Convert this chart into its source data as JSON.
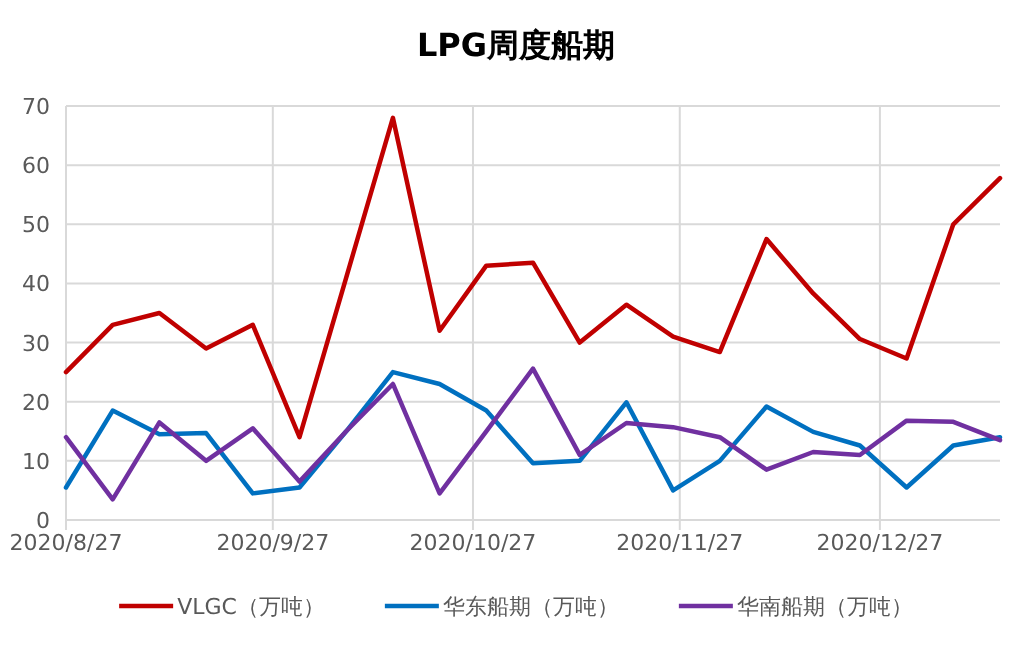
{
  "chart_data": {
    "type": "line",
    "title": "LPG周度船期",
    "x": [
      "2020-08-27",
      "2020-09-03",
      "2020-09-10",
      "2020-09-17",
      "2020-09-24",
      "2020-10-01",
      "2020-10-08",
      "2020-10-15",
      "2020-10-22",
      "2020-10-29",
      "2020-11-05",
      "2020-11-12",
      "2020-11-19",
      "2020-11-26",
      "2020-12-03",
      "2020-12-10",
      "2020-12-17",
      "2020-12-24",
      "2020-12-31",
      "2021-01-07",
      "2021-01-14"
    ],
    "series": [
      {
        "name": "VLGC（万吨）",
        "color": "#c00000",
        "values": [
          25,
          33,
          35,
          29,
          33,
          14,
          41,
          68,
          32,
          43,
          43.5,
          30,
          36.4,
          31,
          28.4,
          47.5,
          38.3,
          30.6,
          27.3,
          50,
          57.8
        ]
      },
      {
        "name": "华东船期（万吨）",
        "color": "#0070c0",
        "values": [
          5.5,
          18.5,
          14.5,
          14.7,
          4.5,
          5.5,
          15,
          25,
          23,
          18.5,
          9.6,
          10,
          19.9,
          5,
          10,
          19.2,
          14.9,
          12.6,
          5.5,
          12.6,
          14
        ]
      },
      {
        "name": "华南船期（万吨）",
        "color": "#7030a0",
        "values": [
          14,
          3.5,
          16.5,
          10,
          15.5,
          6.5,
          15,
          23,
          4.5,
          15,
          25.6,
          11,
          16.4,
          15.7,
          14,
          8.5,
          11.5,
          11,
          16.8,
          16.6,
          13.5
        ]
      }
    ],
    "xlim": [
      "2020-08-27",
      "2021-01-14"
    ],
    "xticks": [
      {
        "value": "2020-08-27",
        "label": "2020/8/27"
      },
      {
        "value": "2020-09-27",
        "label": "2020/9/27"
      },
      {
        "value": "2020-10-27",
        "label": "2020/10/27"
      },
      {
        "value": "2020-11-27",
        "label": "2020/11/27"
      },
      {
        "value": "2020-12-27",
        "label": "2020/12/27"
      }
    ],
    "ylim": [
      0,
      70
    ],
    "yticks": [
      0,
      10,
      20,
      30,
      40,
      50,
      60,
      70
    ],
    "grid": true,
    "legend": "bottom",
    "marker": "none",
    "line_style": "solid"
  }
}
